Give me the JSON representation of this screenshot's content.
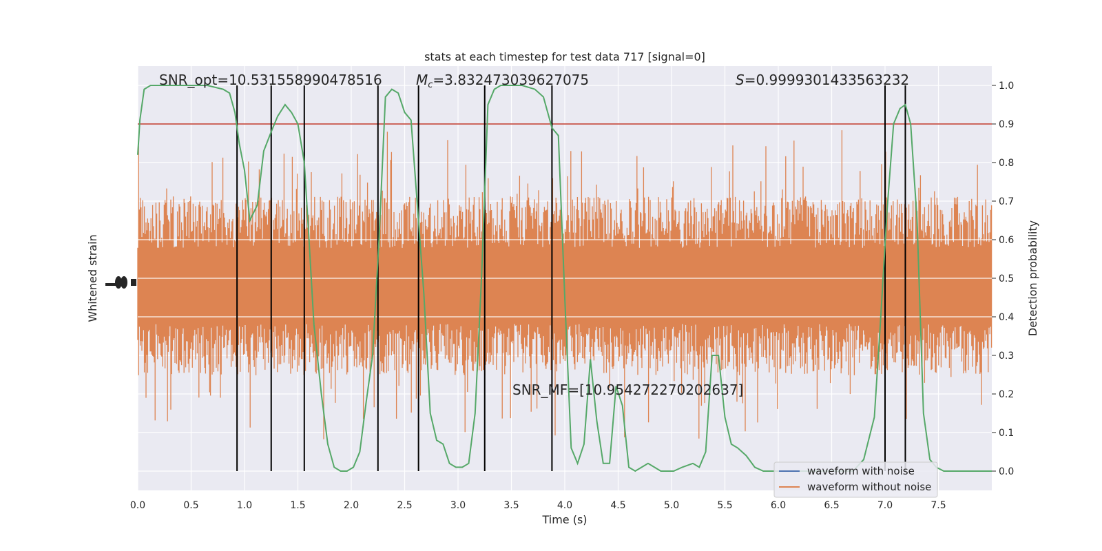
{
  "chart_data": {
    "type": "line",
    "title": "stats at each timestep for test data 717 [signal=0]",
    "xlabel": "Time (s)",
    "ylabel_left": "Whitened strain",
    "ylabel_right": "Detection probability",
    "xlim": [
      0,
      8
    ],
    "ylim_right": [
      -0.05,
      1.05
    ],
    "x_ticks": [
      "0.0",
      "0.5",
      "1.0",
      "1.5",
      "2.0",
      "2.5",
      "3.0",
      "3.5",
      "4.0",
      "4.5",
      "5.0",
      "5.5",
      "6.0",
      "6.5",
      "7.0",
      "7.5"
    ],
    "y_ticks_right": [
      "0.0",
      "0.1",
      "0.2",
      "0.3",
      "0.4",
      "0.5",
      "0.6",
      "0.7",
      "0.8",
      "0.9",
      "1.0"
    ],
    "grid": true,
    "threshold": 0.9,
    "threshold_color": "#c0392b",
    "colors": {
      "waveform_with_noise": "#4c72b0",
      "waveform_without_noise": "#dd8452",
      "probability": "#55a868",
      "plot_background": "#eaeaf2"
    },
    "annotations": {
      "snr_opt": "SNR_opt=10.531558990478516",
      "mc_symbol": "M",
      "mc_sub": "c",
      "mc_value": "=3.832473039627075",
      "s_symbol": "S",
      "s_value": "=0.9999301433563232",
      "snr_mf": "SNR_MF=[10.954272270202637]"
    },
    "legend": {
      "position": "lower right",
      "entries": [
        "waveform with noise",
        "waveform without noise"
      ]
    },
    "detection_times": [
      0.93,
      1.25,
      1.56,
      2.25,
      2.63,
      3.25,
      3.88,
      7.0,
      7.19
    ],
    "series": [
      {
        "name": "Detection probability",
        "x": [
          0.0,
          0.02,
          0.06,
          0.12,
          0.3,
          0.5,
          0.65,
          0.8,
          0.86,
          0.91,
          0.95,
          1.0,
          1.05,
          1.12,
          1.18,
          1.25,
          1.31,
          1.38,
          1.44,
          1.5,
          1.56,
          1.6,
          1.65,
          1.72,
          1.78,
          1.84,
          1.9,
          1.96,
          2.02,
          2.08,
          2.14,
          2.2,
          2.26,
          2.32,
          2.38,
          2.44,
          2.5,
          2.56,
          2.63,
          2.68,
          2.74,
          2.8,
          2.86,
          2.92,
          2.98,
          3.04,
          3.1,
          3.16,
          3.22,
          3.28,
          3.34,
          3.4,
          3.5,
          3.6,
          3.72,
          3.8,
          3.88,
          3.94,
          4.0,
          4.06,
          4.12,
          4.18,
          4.24,
          4.3,
          4.36,
          4.42,
          4.48,
          4.54,
          4.6,
          4.66,
          4.72,
          4.78,
          4.84,
          4.9,
          4.96,
          5.02,
          5.1,
          5.2,
          5.26,
          5.32,
          5.38,
          5.44,
          5.5,
          5.56,
          5.62,
          5.7,
          5.78,
          5.86,
          5.94,
          6.0,
          6.1,
          6.3,
          6.5,
          6.7,
          6.8,
          6.9,
          6.96,
          7.02,
          7.08,
          7.14,
          7.19,
          7.24,
          7.3,
          7.36,
          7.42,
          7.48,
          7.55,
          7.6,
          7.7,
          7.9,
          8.0
        ],
        "values": [
          0.82,
          0.91,
          0.99,
          1.0,
          1.0,
          1.0,
          1.0,
          0.99,
          0.98,
          0.93,
          0.85,
          0.78,
          0.65,
          0.69,
          0.83,
          0.88,
          0.92,
          0.95,
          0.93,
          0.9,
          0.8,
          0.62,
          0.38,
          0.2,
          0.07,
          0.01,
          0.0,
          0.0,
          0.01,
          0.05,
          0.18,
          0.3,
          0.6,
          0.97,
          0.99,
          0.98,
          0.93,
          0.91,
          0.65,
          0.46,
          0.15,
          0.08,
          0.07,
          0.02,
          0.01,
          0.01,
          0.02,
          0.15,
          0.5,
          0.95,
          0.99,
          1.0,
          1.0,
          1.0,
          0.99,
          0.97,
          0.89,
          0.87,
          0.45,
          0.06,
          0.02,
          0.07,
          0.29,
          0.13,
          0.02,
          0.02,
          0.22,
          0.17,
          0.01,
          0.0,
          0.01,
          0.02,
          0.01,
          0.0,
          0.0,
          0.0,
          0.01,
          0.02,
          0.01,
          0.05,
          0.3,
          0.3,
          0.14,
          0.07,
          0.06,
          0.04,
          0.01,
          0.0,
          0.0,
          0.0,
          0.0,
          0.0,
          0.0,
          0.0,
          0.03,
          0.14,
          0.4,
          0.68,
          0.9,
          0.94,
          0.95,
          0.9,
          0.65,
          0.15,
          0.03,
          0.01,
          0.0,
          0.0,
          0.0,
          0.0,
          0.0
        ]
      }
    ]
  }
}
